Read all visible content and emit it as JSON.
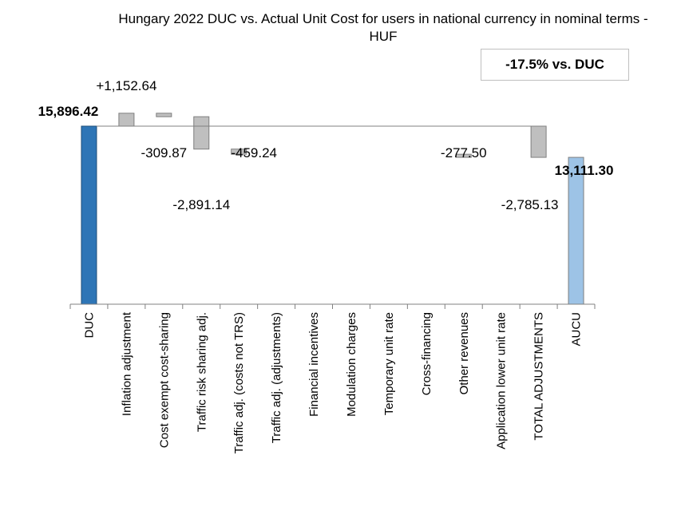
{
  "chart_data": {
    "type": "waterfall",
    "title": "Hungary 2022 DUC vs. Actual Unit Cost for users in national currency in nominal terms - HUF",
    "annotation": "-17.5% vs. DUC",
    "categories": [
      "DUC",
      "Inflation adjustment",
      "Cost exempt cost-sharing",
      "Traffic risk sharing adj.",
      "Traffic adj. (costs not TRS)",
      "Traffic adj. (adjustments)",
      "Financial incentives",
      "Modulation charges",
      "Temporary unit rate",
      "Cross-financing",
      "Other revenues",
      "Application lower unit rate",
      "TOTAL ADJUSTMENTS",
      "AUCU"
    ],
    "values": [
      15896.42,
      1152.64,
      -309.87,
      -2891.14,
      -459.24,
      0,
      0,
      0,
      0,
      0,
      -277.5,
      0,
      -2785.13,
      13111.3
    ],
    "labels": [
      "15,896.42",
      "+1,152.64",
      "-309.87",
      "-2,891.14",
      "-459.24",
      "",
      "",
      "",
      "",
      "",
      "-277.50",
      "",
      "-2,785.13",
      "13,111.30"
    ],
    "colors": {
      "duc": "#2e75b6",
      "adjustment": "#bfbfbf",
      "aucu": "#9dc3e6"
    }
  }
}
